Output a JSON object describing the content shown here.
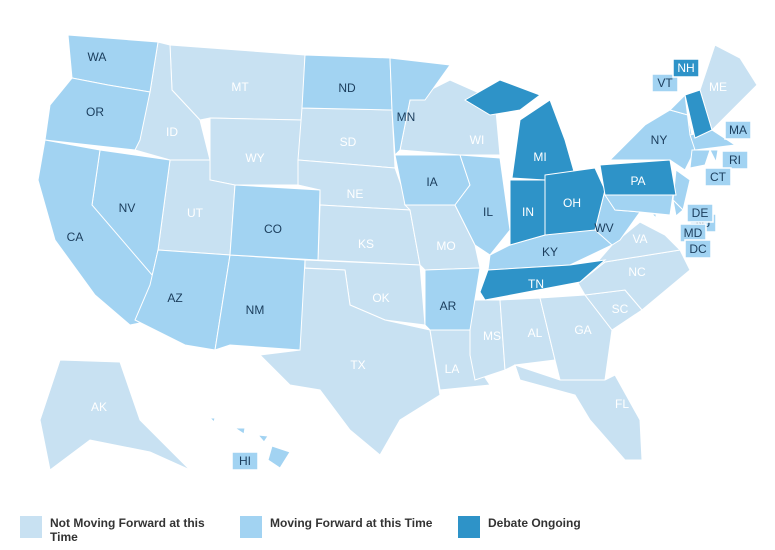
{
  "legend": [
    {
      "label": "Not Moving Forward at this Time",
      "color": "#c8e1f2",
      "states": [
        "MT",
        "ID",
        "WY",
        "UT",
        "SD",
        "NE",
        "KS",
        "OK",
        "TX",
        "MO",
        "LA",
        "WI",
        "MS",
        "AL",
        "GA",
        "FL",
        "SC",
        "NC",
        "VA",
        "ME",
        "AK"
      ]
    },
    {
      "label": "Moving Forward at this Time",
      "color": "#a2d3f2",
      "states": [
        "WA",
        "OR",
        "NV",
        "CA",
        "AZ",
        "NM",
        "CO",
        "ND",
        "MN",
        "IA",
        "AR",
        "IL",
        "KY",
        "WV",
        "NY",
        "VT",
        "MA",
        "RI",
        "CT",
        "NJ",
        "DE",
        "MD",
        "DC",
        "HI"
      ]
    },
    {
      "label": "Debate Ongoing",
      "color": "#2e93c8",
      "states": [
        "MI",
        "IN",
        "OH",
        "PA",
        "TN",
        "NH"
      ]
    }
  ]
}
